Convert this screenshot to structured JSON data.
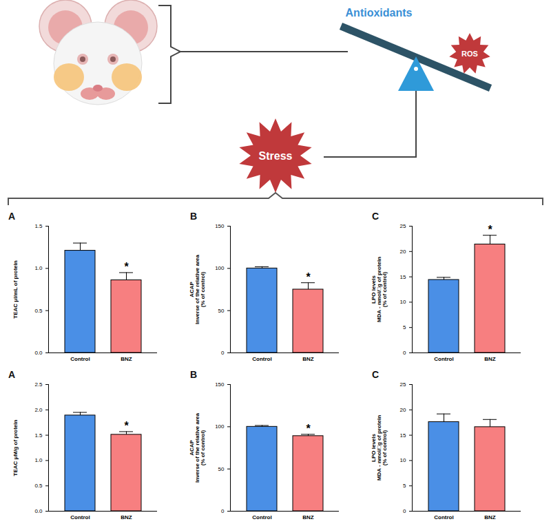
{
  "diagram": {
    "labels": {
      "antioxidants": "Antioxidants",
      "ros": "ROS",
      "stress": "Stress"
    }
  },
  "chart_data": [
    {
      "type": "bar",
      "panel": "A",
      "ylabel": [
        "TEAC μl/mL of protein"
      ],
      "categories": [
        "Control",
        "BNZ"
      ],
      "values": [
        1.21,
        0.86
      ],
      "errors": [
        0.09,
        0.09
      ],
      "colors": [
        "#4a8fe6",
        "#f77f80"
      ],
      "ylim": [
        0,
        1.5
      ],
      "yticks": [
        {
          "value": 0,
          "label": "0.0"
        },
        {
          "value": 0.5,
          "label": "0.5"
        },
        {
          "value": 1,
          "label": "1.0"
        },
        {
          "value": 1.5,
          "label": "1.5"
        }
      ],
      "annotations": [
        {
          "category": "BNZ",
          "text": "*"
        }
      ]
    },
    {
      "type": "bar",
      "panel": "B",
      "ylabel": [
        "ACAP",
        "Inverse of the relative area",
        "(% of control)"
      ],
      "categories": [
        "Control",
        "BNZ"
      ],
      "values": [
        100,
        75
      ],
      "errors": [
        2,
        8
      ],
      "colors": [
        "#4a8fe6",
        "#f77f80"
      ],
      "ylim": [
        0,
        150
      ],
      "yticks": [
        0,
        50,
        100,
        150
      ],
      "annotations": [
        {
          "category": "BNZ",
          "text": "*"
        }
      ]
    },
    {
      "type": "bar",
      "panel": "C",
      "ylabel": [
        "LPO levels",
        "MDA - nmol/□g of protein",
        "(% of control)"
      ],
      "categories": [
        "Control",
        "BNZ"
      ],
      "values": [
        14.4,
        21.4
      ],
      "errors": [
        0.5,
        1.8
      ],
      "colors": [
        "#4a8fe6",
        "#f77f80"
      ],
      "ylim": [
        0,
        25
      ],
      "yticks": [
        0,
        5,
        10,
        15,
        20,
        25
      ],
      "annotations": [
        {
          "category": "BNZ",
          "text": "*"
        }
      ]
    },
    {
      "type": "bar",
      "panel": "A",
      "ylabel": [
        "TEAC μM/g of protein"
      ],
      "categories": [
        "Control",
        "BNZ"
      ],
      "values": [
        1.89,
        1.51
      ],
      "errors": [
        0.06,
        0.06
      ],
      "colors": [
        "#4a8fe6",
        "#f77f80"
      ],
      "ylim": [
        0,
        2.5
      ],
      "yticks": [
        {
          "value": 0,
          "label": "0.0"
        },
        {
          "value": 0.5,
          "label": "0.5"
        },
        {
          "value": 1,
          "label": "1.0"
        },
        {
          "value": 1.5,
          "label": "1.5"
        },
        {
          "value": 2,
          "label": "2.0"
        },
        {
          "value": 2.5,
          "label": "2.5"
        }
      ],
      "annotations": [
        {
          "category": "BNZ",
          "text": "*"
        }
      ]
    },
    {
      "type": "bar",
      "panel": "B",
      "ylabel": [
        "ACAP",
        "Inverse of the relative area",
        "(% of control)"
      ],
      "categories": [
        "Control",
        "BNZ"
      ],
      "values": [
        100,
        89
      ],
      "errors": [
        1.5,
        2
      ],
      "colors": [
        "#4a8fe6",
        "#f77f80"
      ],
      "ylim": [
        0,
        150
      ],
      "yticks": [
        0,
        50,
        100,
        150
      ],
      "annotations": [
        {
          "category": "BNZ",
          "text": "*"
        }
      ]
    },
    {
      "type": "bar",
      "panel": "C",
      "ylabel": [
        "LPO levels",
        "MDA - nmol/□g of protein",
        "(% of control)"
      ],
      "categories": [
        "Control",
        "BNZ"
      ],
      "values": [
        17.6,
        16.6
      ],
      "errors": [
        1.6,
        1.5
      ],
      "colors": [
        "#4a8fe6",
        "#f77f80"
      ],
      "ylim": [
        0,
        25
      ],
      "yticks": [
        0,
        5,
        10,
        15,
        20,
        25
      ],
      "annotations": []
    }
  ]
}
